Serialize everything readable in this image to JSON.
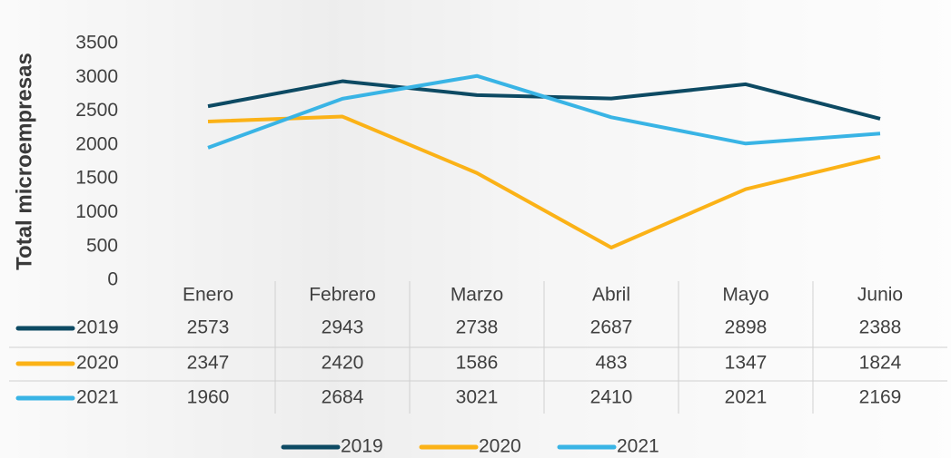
{
  "chart_data": {
    "type": "line",
    "y_label": "Total microempresas",
    "categories": [
      "Enero",
      "Febrero",
      "Marzo",
      "Abril",
      "Mayo",
      "Junio"
    ],
    "series": [
      {
        "name": "2019",
        "color": "#0d4a63",
        "values": [
          2573,
          2943,
          2738,
          2687,
          2898,
          2388
        ]
      },
      {
        "name": "2020",
        "color": "#fbb217",
        "values": [
          2347,
          2420,
          1586,
          483,
          1347,
          1824
        ]
      },
      {
        "name": "2021",
        "color": "#39b4e5",
        "values": [
          1960,
          2684,
          3021,
          2410,
          2021,
          2169
        ]
      }
    ],
    "ylim": [
      0,
      3500
    ],
    "yticks": [
      0,
      500,
      1000,
      1500,
      2000,
      2500,
      3000,
      3500
    ],
    "grid": false,
    "legend": "bottom"
  }
}
